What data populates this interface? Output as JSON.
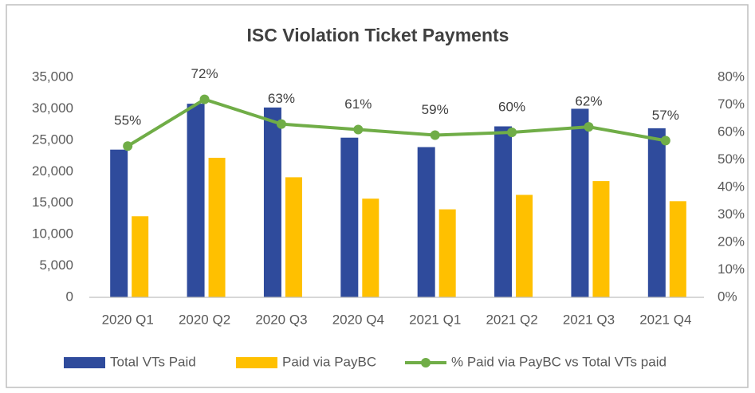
{
  "chart_data": {
    "type": "bar",
    "title": "ISC Violation Ticket Payments",
    "categories": [
      "2020 Q1",
      "2020 Q2",
      "2020 Q3",
      "2020 Q4",
      "2021 Q1",
      "2021 Q2",
      "2021 Q3",
      "2021 Q4"
    ],
    "series": [
      {
        "name": "Total VTs Paid",
        "type": "bar",
        "color": "#2f4b9c",
        "values": [
          23500,
          30800,
          30200,
          25400,
          23900,
          27200,
          30000,
          26900
        ]
      },
      {
        "name": "Paid via PayBC",
        "type": "bar",
        "color": "#ffc000",
        "values": [
          12900,
          22200,
          19100,
          15700,
          14000,
          16300,
          18500,
          15300
        ]
      },
      {
        "name": "% Paid via PayBC vs Total VTs paid",
        "type": "line",
        "axis": "y2",
        "color": "#70ad47",
        "values": [
          55,
          72,
          63,
          61,
          59,
          60,
          62,
          57
        ],
        "value_labels": [
          "55%",
          "72%",
          "63%",
          "61%",
          "59%",
          "60%",
          "62%",
          "57%"
        ]
      }
    ],
    "ylim": [
      0,
      35000
    ],
    "yticks": [
      0,
      {
        "value": 5000,
        "label": "5,000"
      },
      {
        "value": 10000,
        "label": "10,000"
      },
      {
        "value": 15000,
        "label": "15,000"
      },
      {
        "value": 20000,
        "label": "20,000"
      },
      {
        "value": 25000,
        "label": "25,000"
      },
      {
        "value": 30000,
        "label": "30,000"
      },
      {
        "value": 35000,
        "label": "35,000"
      }
    ],
    "y2lim": [
      0,
      80
    ],
    "y2ticks": [
      {
        "value": 0,
        "label": "0%"
      },
      {
        "value": 10,
        "label": "10%"
      },
      {
        "value": 20,
        "label": "20%"
      },
      {
        "value": 30,
        "label": "30%"
      },
      {
        "value": 40,
        "label": "40%"
      },
      {
        "value": 50,
        "label": "50%"
      },
      {
        "value": 60,
        "label": "60%"
      },
      {
        "value": 70,
        "label": "70%"
      },
      {
        "value": 80,
        "label": "80%"
      }
    ],
    "grid": false,
    "legend": "bottom"
  }
}
